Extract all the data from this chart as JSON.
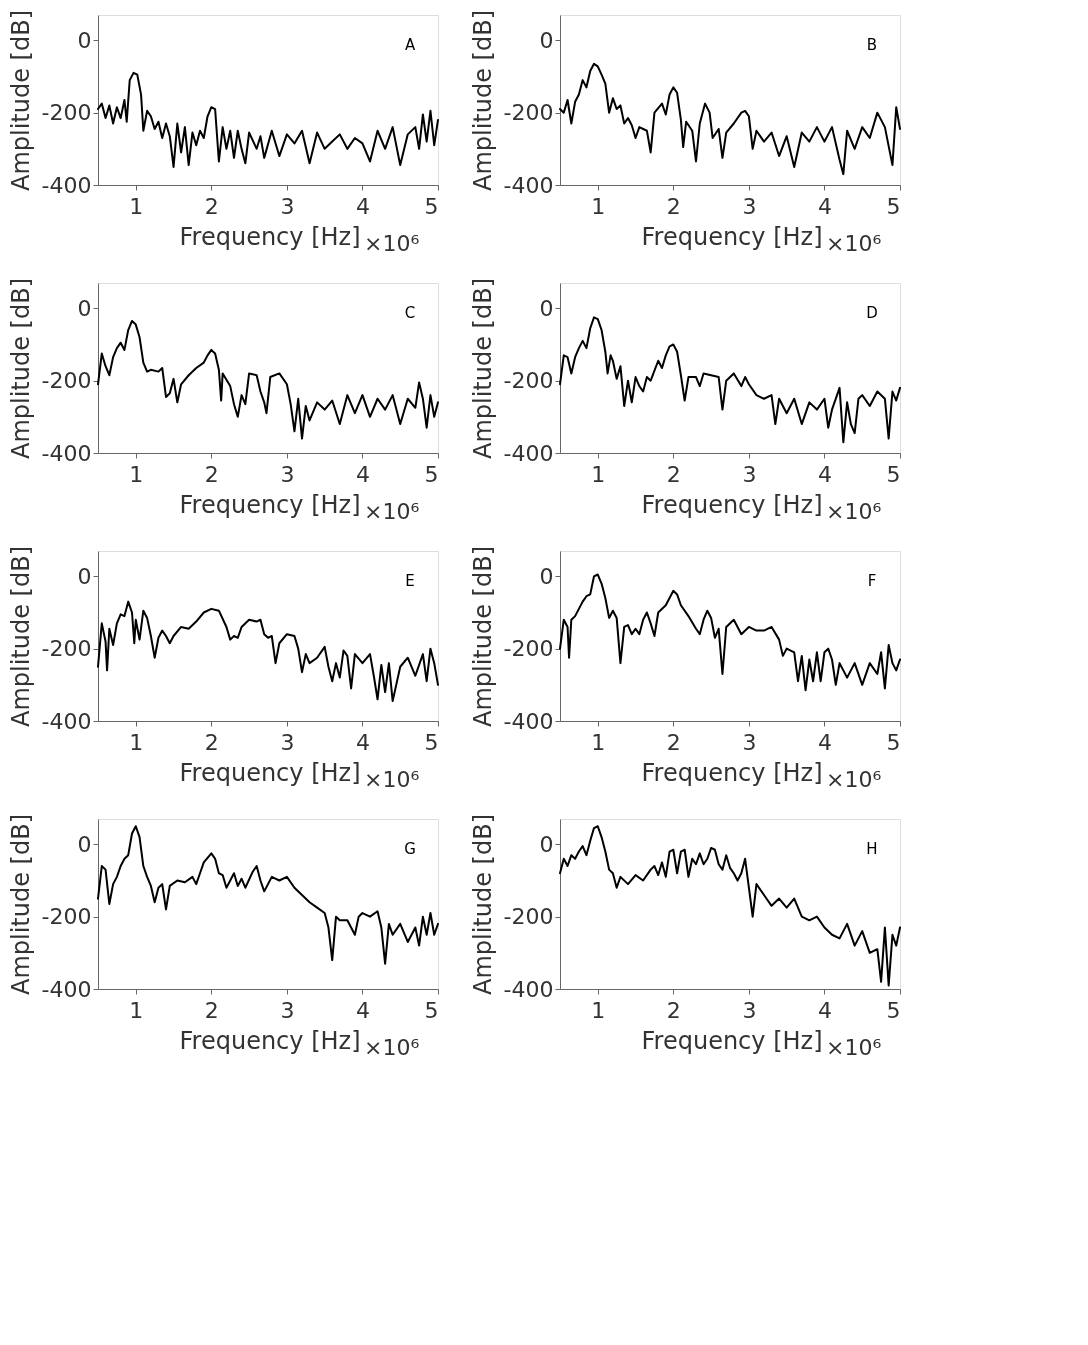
{
  "chart_data": [
    {
      "type": "line",
      "title": "A",
      "xlabel": "Frequency [Hz]",
      "ylabel": "Amplitude [dB]",
      "annotations": [
        "×10⁶"
      ],
      "xlim": [
        0.5,
        5
      ],
      "ylim": [
        -400,
        70
      ],
      "xticks": [
        1,
        2,
        3,
        4,
        5
      ],
      "yticks": [
        -400,
        -200,
        0
      ],
      "grid": false,
      "line_style": "solid",
      "series": [
        {
          "color": "#000000",
          "x": [
            0.5,
            0.55,
            0.6,
            0.65,
            0.7,
            0.75,
            0.8,
            0.85,
            0.88,
            0.92,
            0.97,
            1.02,
            1.07,
            1.1,
            1.15,
            1.2,
            1.25,
            1.3,
            1.35,
            1.4,
            1.45,
            1.5,
            1.55,
            1.6,
            1.65,
            1.7,
            1.75,
            1.8,
            1.85,
            1.9,
            1.95,
            2.0,
            2.05,
            2.1,
            2.15,
            2.2,
            2.25,
            2.3,
            2.35,
            2.4,
            2.45,
            2.5,
            2.6,
            2.65,
            2.7,
            2.8,
            2.9,
            3.0,
            3.1,
            3.2,
            3.3,
            3.4,
            3.5,
            3.6,
            3.7,
            3.8,
            3.9,
            4.0,
            4.1,
            4.2,
            4.3,
            4.4,
            4.5,
            4.6,
            4.7,
            4.75,
            4.8,
            4.85,
            4.9,
            4.95,
            5.0
          ],
          "values": [
            -190,
            -175,
            -215,
            -180,
            -230,
            -185,
            -215,
            -165,
            -225,
            -110,
            -90,
            -95,
            -150,
            -250,
            -195,
            -210,
            -245,
            -225,
            -270,
            -230,
            -265,
            -350,
            -230,
            -310,
            -240,
            -345,
            -255,
            -290,
            -250,
            -270,
            -210,
            -185,
            -190,
            -335,
            -240,
            -300,
            -250,
            -325,
            -250,
            -300,
            -340,
            -255,
            -300,
            -265,
            -325,
            -250,
            -320,
            -260,
            -285,
            -250,
            -340,
            -255,
            -300,
            -280,
            -260,
            -300,
            -270,
            -285,
            -335,
            -250,
            -300,
            -240,
            -345,
            -260,
            -240,
            -300,
            -205,
            -280,
            -195,
            -290,
            -220
          ]
        }
      ]
    },
    {
      "type": "line",
      "title": "B",
      "xlabel": "Frequency [Hz]",
      "ylabel": "Amplitude [dB]",
      "annotations": [
        "×10⁶"
      ],
      "xlim": [
        0.5,
        5
      ],
      "ylim": [
        -400,
        70
      ],
      "xticks": [
        1,
        2,
        3,
        4,
        5
      ],
      "yticks": [
        -400,
        -200,
        0
      ],
      "grid": false,
      "line_style": "solid",
      "series": [
        {
          "color": "#000000",
          "x": [
            0.5,
            0.55,
            0.6,
            0.65,
            0.7,
            0.75,
            0.8,
            0.85,
            0.9,
            0.95,
            1.0,
            1.05,
            1.1,
            1.15,
            1.2,
            1.25,
            1.3,
            1.35,
            1.4,
            1.45,
            1.5,
            1.55,
            1.65,
            1.7,
            1.75,
            1.85,
            1.9,
            1.95,
            2.0,
            2.05,
            2.1,
            2.13,
            2.17,
            2.25,
            2.3,
            2.35,
            2.42,
            2.48,
            2.52,
            2.6,
            2.65,
            2.7,
            2.8,
            2.9,
            2.95,
            3.0,
            3.05,
            3.1,
            3.2,
            3.3,
            3.4,
            3.5,
            3.6,
            3.7,
            3.8,
            3.9,
            4.0,
            4.1,
            4.2,
            4.25,
            4.3,
            4.4,
            4.5,
            4.6,
            4.7,
            4.8,
            4.9,
            4.95,
            5.0
          ],
          "values": [
            -190,
            -200,
            -165,
            -230,
            -170,
            -150,
            -110,
            -130,
            -85,
            -65,
            -72,
            -95,
            -120,
            -200,
            -160,
            -190,
            -180,
            -230,
            -215,
            -235,
            -270,
            -240,
            -250,
            -310,
            -200,
            -175,
            -205,
            -150,
            -130,
            -145,
            -220,
            -295,
            -225,
            -250,
            -335,
            -230,
            -175,
            -200,
            -270,
            -245,
            -325,
            -255,
            -230,
            -200,
            -195,
            -210,
            -300,
            -250,
            -280,
            -255,
            -320,
            -265,
            -350,
            -255,
            -280,
            -240,
            -280,
            -240,
            -330,
            -370,
            -250,
            -300,
            -240,
            -270,
            -200,
            -240,
            -345,
            -185,
            -245
          ]
        }
      ]
    },
    {
      "type": "line",
      "title": "C",
      "xlabel": "Frequency [Hz]",
      "ylabel": "Amplitude [dB]",
      "annotations": [
        "×10⁶"
      ],
      "xlim": [
        0.5,
        5
      ],
      "ylim": [
        -400,
        70
      ],
      "xticks": [
        1,
        2,
        3,
        4,
        5
      ],
      "yticks": [
        -400,
        -200,
        0
      ],
      "grid": false,
      "line_style": "solid",
      "series": [
        {
          "color": "#000000",
          "x": [
            0.5,
            0.55,
            0.6,
            0.65,
            0.7,
            0.75,
            0.8,
            0.85,
            0.9,
            0.95,
            1.0,
            1.05,
            1.1,
            1.15,
            1.2,
            1.3,
            1.35,
            1.4,
            1.45,
            1.5,
            1.55,
            1.6,
            1.7,
            1.8,
            1.9,
            1.95,
            2.0,
            2.05,
            2.1,
            2.13,
            2.15,
            2.25,
            2.3,
            2.35,
            2.4,
            2.45,
            2.5,
            2.6,
            2.65,
            2.7,
            2.73,
            2.78,
            2.9,
            3.0,
            3.05,
            3.1,
            3.15,
            3.2,
            3.25,
            3.3,
            3.4,
            3.5,
            3.6,
            3.7,
            3.8,
            3.9,
            4.0,
            4.1,
            4.2,
            4.3,
            4.4,
            4.5,
            4.6,
            4.7,
            4.75,
            4.8,
            4.85,
            4.9,
            4.95,
            5.0
          ],
          "values": [
            -210,
            -125,
            -160,
            -185,
            -135,
            -110,
            -95,
            -115,
            -60,
            -35,
            -45,
            -80,
            -150,
            -175,
            -170,
            -175,
            -165,
            -245,
            -235,
            -195,
            -260,
            -210,
            -185,
            -165,
            -150,
            -130,
            -115,
            -125,
            -170,
            -255,
            -180,
            -215,
            -265,
            -300,
            -240,
            -265,
            -180,
            -185,
            -230,
            -260,
            -290,
            -190,
            -180,
            -210,
            -265,
            -340,
            -250,
            -360,
            -270,
            -310,
            -260,
            -280,
            -255,
            -320,
            -240,
            -290,
            -240,
            -300,
            -250,
            -280,
            -240,
            -320,
            -250,
            -275,
            -205,
            -250,
            -330,
            -240,
            -300,
            -260
          ]
        }
      ]
    },
    {
      "type": "line",
      "title": "D",
      "xlabel": "Frequency [Hz]",
      "ylabel": "Amplitude [dB]",
      "annotations": [
        "×10⁶"
      ],
      "xlim": [
        0.5,
        5
      ],
      "ylim": [
        -400,
        70
      ],
      "xticks": [
        1,
        2,
        3,
        4,
        5
      ],
      "yticks": [
        -400,
        -200,
        0
      ],
      "grid": false,
      "line_style": "solid",
      "series": [
        {
          "color": "#000000",
          "x": [
            0.5,
            0.55,
            0.6,
            0.65,
            0.7,
            0.75,
            0.8,
            0.85,
            0.9,
            0.95,
            1.0,
            1.05,
            1.1,
            1.13,
            1.17,
            1.2,
            1.25,
            1.3,
            1.35,
            1.4,
            1.45,
            1.5,
            1.55,
            1.6,
            1.65,
            1.7,
            1.8,
            1.85,
            1.9,
            1.95,
            2.0,
            2.05,
            2.1,
            2.15,
            2.2,
            2.3,
            2.35,
            2.4,
            2.5,
            2.6,
            2.65,
            2.7,
            2.8,
            2.9,
            2.95,
            3.0,
            3.1,
            3.2,
            3.3,
            3.35,
            3.4,
            3.5,
            3.6,
            3.7,
            3.8,
            3.9,
            4.0,
            4.05,
            4.1,
            4.2,
            4.25,
            4.3,
            4.35,
            4.4,
            4.45,
            4.5,
            4.6,
            4.7,
            4.8,
            4.85,
            4.9,
            4.95,
            5.0
          ],
          "values": [
            -210,
            -130,
            -135,
            -180,
            -135,
            -110,
            -90,
            -110,
            -55,
            -25,
            -30,
            -60,
            -120,
            -180,
            -130,
            -145,
            -195,
            -160,
            -270,
            -200,
            -260,
            -190,
            -215,
            -230,
            -190,
            -200,
            -145,
            -165,
            -130,
            -105,
            -100,
            -120,
            -185,
            -255,
            -190,
            -190,
            -215,
            -180,
            -185,
            -190,
            -280,
            -200,
            -180,
            -215,
            -190,
            -210,
            -240,
            -250,
            -240,
            -320,
            -250,
            -290,
            -250,
            -320,
            -260,
            -280,
            -250,
            -330,
            -280,
            -220,
            -370,
            -260,
            -320,
            -345,
            -250,
            -240,
            -270,
            -230,
            -250,
            -360,
            -230,
            -255,
            -220
          ]
        }
      ]
    },
    {
      "type": "line",
      "title": "E",
      "xlabel": "Frequency [Hz]",
      "ylabel": "Amplitude [dB]",
      "annotations": [
        "×10⁶"
      ],
      "xlim": [
        0.5,
        5
      ],
      "ylim": [
        -400,
        70
      ],
      "xticks": [
        1,
        2,
        3,
        4,
        5
      ],
      "yticks": [
        -400,
        -200,
        0
      ],
      "grid": false,
      "line_style": "solid",
      "series": [
        {
          "color": "#000000",
          "x": [
            0.5,
            0.55,
            0.6,
            0.62,
            0.65,
            0.7,
            0.75,
            0.8,
            0.85,
            0.9,
            0.95,
            0.98,
            1.0,
            1.05,
            1.1,
            1.15,
            1.2,
            1.25,
            1.3,
            1.35,
            1.4,
            1.45,
            1.5,
            1.6,
            1.7,
            1.8,
            1.9,
            2.0,
            2.1,
            2.2,
            2.25,
            2.3,
            2.35,
            2.4,
            2.5,
            2.6,
            2.65,
            2.7,
            2.75,
            2.8,
            2.85,
            2.9,
            3.0,
            3.1,
            3.15,
            3.2,
            3.25,
            3.3,
            3.4,
            3.5,
            3.55,
            3.6,
            3.65,
            3.7,
            3.75,
            3.8,
            3.85,
            3.9,
            4.0,
            4.1,
            4.15,
            4.2,
            4.25,
            4.3,
            4.35,
            4.4,
            4.5,
            4.6,
            4.7,
            4.8,
            4.85,
            4.9,
            4.95,
            5.0
          ],
          "values": [
            -250,
            -130,
            -180,
            -260,
            -145,
            -190,
            -130,
            -105,
            -110,
            -70,
            -100,
            -185,
            -120,
            -175,
            -95,
            -115,
            -165,
            -225,
            -170,
            -150,
            -165,
            -185,
            -165,
            -140,
            -145,
            -125,
            -100,
            -90,
            -95,
            -140,
            -175,
            -165,
            -170,
            -140,
            -120,
            -125,
            -120,
            -160,
            -170,
            -165,
            -240,
            -185,
            -160,
            -165,
            -200,
            -265,
            -215,
            -240,
            -225,
            -195,
            -250,
            -290,
            -240,
            -280,
            -205,
            -220,
            -310,
            -215,
            -240,
            -215,
            -275,
            -340,
            -245,
            -320,
            -240,
            -345,
            -250,
            -225,
            -275,
            -215,
            -290,
            -200,
            -240,
            -300
          ]
        }
      ]
    },
    {
      "type": "line",
      "title": "F",
      "xlabel": "Frequency [Hz]",
      "ylabel": "Amplitude [dB]",
      "annotations": [
        "×10⁶"
      ],
      "xlim": [
        0.5,
        5
      ],
      "ylim": [
        -400,
        70
      ],
      "xticks": [
        1,
        2,
        3,
        4,
        5
      ],
      "yticks": [
        -400,
        -200,
        0
      ],
      "grid": false,
      "line_style": "solid",
      "series": [
        {
          "color": "#000000",
          "x": [
            0.5,
            0.55,
            0.6,
            0.62,
            0.65,
            0.7,
            0.8,
            0.85,
            0.9,
            0.95,
            1.0,
            1.05,
            1.1,
            1.15,
            1.2,
            1.25,
            1.3,
            1.35,
            1.4,
            1.45,
            1.5,
            1.55,
            1.6,
            1.65,
            1.7,
            1.75,
            1.8,
            1.9,
            2.0,
            2.05,
            2.1,
            2.2,
            2.3,
            2.35,
            2.4,
            2.45,
            2.5,
            2.55,
            2.6,
            2.65,
            2.7,
            2.8,
            2.9,
            3.0,
            3.1,
            3.2,
            3.3,
            3.4,
            3.45,
            3.5,
            3.6,
            3.65,
            3.7,
            3.75,
            3.8,
            3.85,
            3.9,
            3.95,
            4.0,
            4.05,
            4.1,
            4.15,
            4.2,
            4.3,
            4.4,
            4.5,
            4.6,
            4.7,
            4.75,
            4.8,
            4.85,
            4.9,
            4.95,
            5.0
          ],
          "values": [
            -200,
            -120,
            -140,
            -225,
            -120,
            -110,
            -70,
            -55,
            -50,
            0,
            5,
            -20,
            -60,
            -115,
            -95,
            -115,
            -240,
            -140,
            -135,
            -160,
            -145,
            -160,
            -120,
            -100,
            -130,
            -165,
            -100,
            -80,
            -40,
            -50,
            -80,
            -110,
            -145,
            -160,
            -120,
            -95,
            -115,
            -170,
            -145,
            -270,
            -140,
            -120,
            -160,
            -140,
            -150,
            -150,
            -140,
            -175,
            -220,
            -200,
            -210,
            -290,
            -220,
            -315,
            -230,
            -290,
            -210,
            -290,
            -210,
            -200,
            -230,
            -300,
            -240,
            -280,
            -240,
            -300,
            -240,
            -270,
            -210,
            -310,
            -190,
            -240,
            -260,
            -230
          ]
        }
      ]
    },
    {
      "type": "line",
      "title": "G",
      "xlabel": "Frequency [Hz]",
      "ylabel": "Amplitude [dB]",
      "annotations": [
        "×10⁶"
      ],
      "xlim": [
        0.5,
        5
      ],
      "ylim": [
        -400,
        70
      ],
      "xticks": [
        1,
        2,
        3,
        4,
        5
      ],
      "yticks": [
        -400,
        -200,
        0
      ],
      "grid": false,
      "line_style": "solid",
      "series": [
        {
          "color": "#000000",
          "x": [
            0.5,
            0.55,
            0.6,
            0.65,
            0.7,
            0.75,
            0.8,
            0.85,
            0.9,
            0.95,
            1.0,
            1.05,
            1.1,
            1.15,
            1.2,
            1.25,
            1.3,
            1.35,
            1.4,
            1.45,
            1.55,
            1.65,
            1.75,
            1.8,
            1.85,
            1.9,
            2.0,
            2.05,
            2.1,
            2.15,
            2.2,
            2.3,
            2.35,
            2.4,
            2.45,
            2.55,
            2.6,
            2.65,
            2.7,
            2.8,
            2.9,
            3.0,
            3.1,
            3.2,
            3.3,
            3.4,
            3.5,
            3.55,
            3.6,
            3.65,
            3.7,
            3.8,
            3.9,
            3.95,
            4.0,
            4.1,
            4.2,
            4.25,
            4.3,
            4.35,
            4.4,
            4.5,
            4.6,
            4.7,
            4.75,
            4.8,
            4.85,
            4.9,
            4.95,
            5.0
          ],
          "values": [
            -150,
            -60,
            -70,
            -165,
            -110,
            -90,
            -60,
            -40,
            -30,
            30,
            50,
            20,
            -60,
            -90,
            -115,
            -160,
            -120,
            -110,
            -180,
            -115,
            -100,
            -105,
            -90,
            -110,
            -80,
            -50,
            -25,
            -40,
            -80,
            -85,
            -120,
            -80,
            -115,
            -95,
            -120,
            -75,
            -60,
            -100,
            -130,
            -90,
            -100,
            -90,
            -120,
            -140,
            -160,
            -175,
            -190,
            -230,
            -320,
            -200,
            -210,
            -210,
            -250,
            -200,
            -190,
            -200,
            -185,
            -230,
            -330,
            -220,
            -250,
            -220,
            -270,
            -230,
            -280,
            -200,
            -250,
            -190,
            -250,
            -220
          ]
        }
      ]
    },
    {
      "type": "line",
      "title": "H",
      "xlabel": "Frequency [Hz]",
      "ylabel": "Amplitude [dB]",
      "annotations": [
        "×10⁶"
      ],
      "xlim": [
        0.5,
        5
      ],
      "ylim": [
        -400,
        70
      ],
      "xticks": [
        1,
        2,
        3,
        4,
        5
      ],
      "yticks": [
        -400,
        -200,
        0
      ],
      "grid": false,
      "line_style": "solid",
      "series": [
        {
          "color": "#000000",
          "x": [
            0.5,
            0.55,
            0.6,
            0.65,
            0.7,
            0.75,
            0.8,
            0.85,
            0.9,
            0.95,
            1.0,
            1.05,
            1.1,
            1.15,
            1.2,
            1.25,
            1.3,
            1.4,
            1.5,
            1.6,
            1.7,
            1.75,
            1.8,
            1.85,
            1.9,
            1.95,
            2.0,
            2.05,
            2.1,
            2.15,
            2.2,
            2.25,
            2.3,
            2.35,
            2.4,
            2.45,
            2.5,
            2.55,
            2.6,
            2.65,
            2.7,
            2.75,
            2.8,
            2.85,
            2.9,
            2.95,
            3.0,
            3.05,
            3.1,
            3.2,
            3.3,
            3.4,
            3.5,
            3.6,
            3.7,
            3.8,
            3.9,
            4.0,
            4.1,
            4.2,
            4.3,
            4.4,
            4.5,
            4.6,
            4.7,
            4.75,
            4.8,
            4.85,
            4.9,
            4.95,
            5.0
          ],
          "values": [
            -80,
            -40,
            -60,
            -30,
            -40,
            -20,
            -5,
            -30,
            10,
            45,
            50,
            20,
            -20,
            -70,
            -80,
            -120,
            -90,
            -110,
            -85,
            -100,
            -70,
            -60,
            -85,
            -50,
            -90,
            -20,
            -15,
            -80,
            -20,
            -15,
            -90,
            -40,
            -55,
            -25,
            -55,
            -40,
            -10,
            -15,
            -55,
            -70,
            -30,
            -65,
            -80,
            -100,
            -80,
            -40,
            -120,
            -200,
            -110,
            -140,
            -170,
            -150,
            -175,
            -150,
            -200,
            -210,
            -200,
            -230,
            -250,
            -260,
            -220,
            -280,
            -240,
            -300,
            -290,
            -380,
            -230,
            -390,
            -250,
            -280,
            -230
          ]
        }
      ]
    }
  ]
}
